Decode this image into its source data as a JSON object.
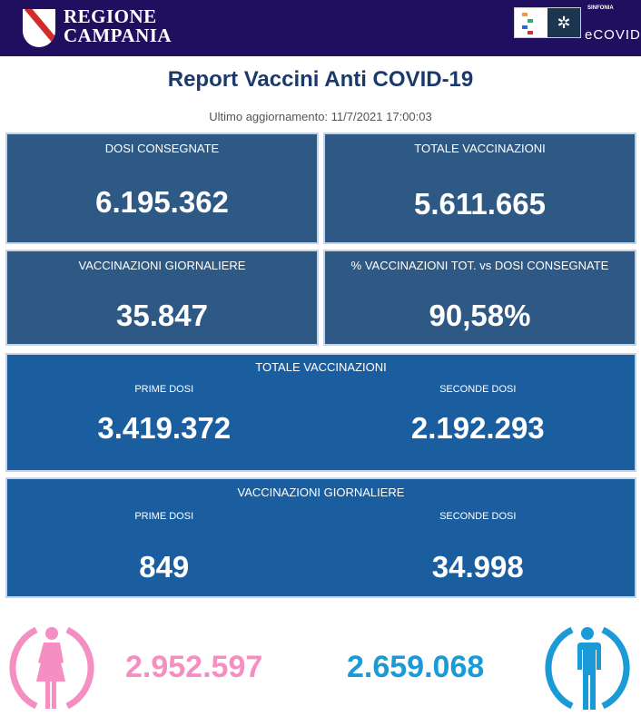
{
  "header": {
    "logo_line1": "REGIONE",
    "logo_line2": "CAMPANIA",
    "brand_small": "SINFONIA",
    "brand": "eCOVID"
  },
  "title": "Report Vaccini Anti COVID-19",
  "updated": "Ultimo aggiornamento: 11/7/2021  17:00:03",
  "kpi": [
    {
      "label": "DOSI  CONSEGNATE",
      "value": "6.195.362"
    },
    {
      "label": "TOTALE VACCINAZIONI",
      "value": "5.611.665"
    },
    {
      "label": "VACCINAZIONI GIORNALIERE",
      "value": "35.847"
    },
    {
      "label": "% VACCINAZIONI TOT. vs DOSI CONSEGNATE",
      "value": "90,58%"
    }
  ],
  "totale": {
    "label": "TOTALE VACCINAZIONI",
    "prime_label": "PRIME DOSI",
    "prime": "3.419.372",
    "seconde_label": "SECONDE DOSI",
    "seconde": "2.192.293"
  },
  "giornaliere": {
    "label": "VACCINAZIONI GIORNALIERE",
    "prime_label": "PRIME DOSI",
    "prime": "849",
    "seconde_label": "SECONDE DOSI",
    "seconde": "34.998"
  },
  "gender": {
    "female": "2.952.597",
    "male": "2.659.068",
    "female_color": "#f58fc2",
    "male_color": "#1a9ad6"
  }
}
